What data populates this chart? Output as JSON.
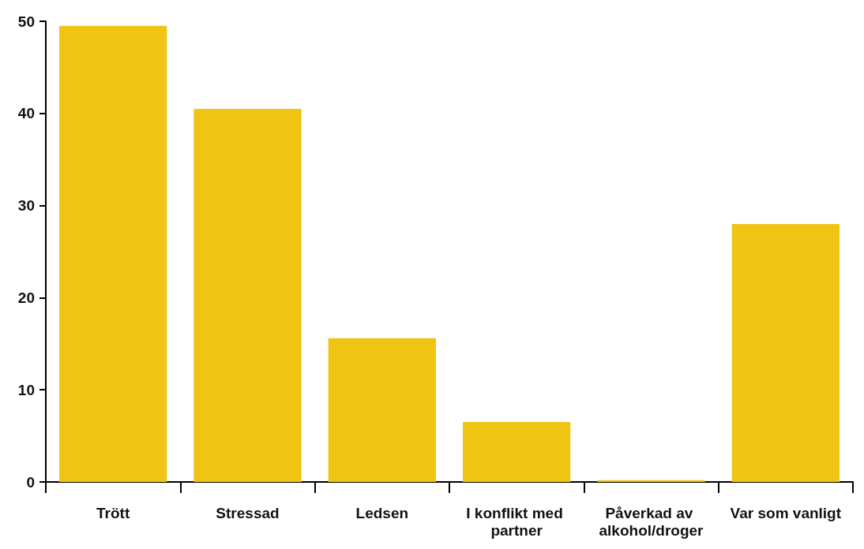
{
  "chart_data": {
    "type": "bar",
    "categories": [
      "Trött",
      "Stressad",
      "Ledsen",
      "I konflikt med partner",
      "Påverkad av alkohol/droger",
      "Var som vanligt"
    ],
    "values": [
      49.5,
      40.5,
      15.6,
      6.5,
      0.2,
      28
    ],
    "color": "#f0c413",
    "ylim": [
      0,
      50
    ],
    "yticks": [
      0,
      10,
      20,
      30,
      40,
      50
    ]
  }
}
